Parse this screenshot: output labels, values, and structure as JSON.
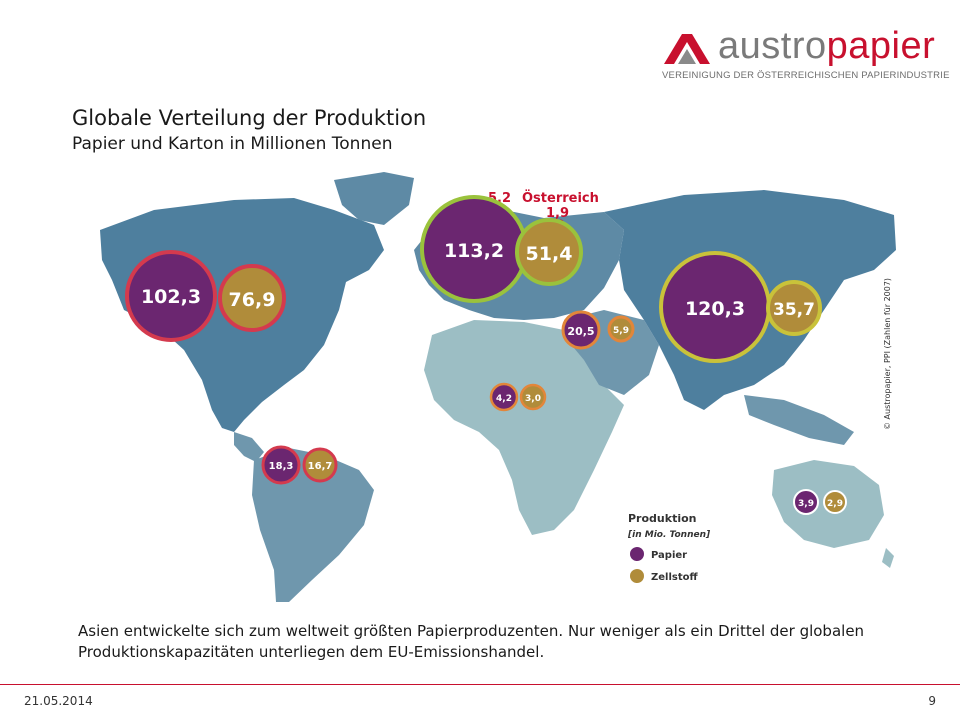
{
  "logo": {
    "word_a": "austro",
    "word_b": "papier",
    "subtitle": "VEREINIGUNG DER ÖSTERREICHISCHEN PAPIERINDUSTRIE"
  },
  "slide": {
    "title": "Globale Verteilung der Produktion",
    "subtitle": "Papier und Karton in Millionen Tonnen",
    "caption": "Asien entwickelte sich zum weltweit größten Papierproduzenten. Nur weniger als ein Drittel der globalen Produktionskapazitäten unterliegen dem EU-Emissionshandel.",
    "date": "21.05.2014",
    "page": "9"
  },
  "map": {
    "copyright": "© Austropapier, PPI (Zahlen für 2007)",
    "austria": {
      "label": "Österreich",
      "papier": "5,2",
      "zellstoff": "1,9"
    },
    "regions": {
      "north_america": {
        "papier": "102,3",
        "zellstoff": "76,9"
      },
      "europe": {
        "papier": "113,2",
        "zellstoff": "51,4"
      },
      "asia": {
        "papier": "120,3",
        "zellstoff": "35,7"
      },
      "middle_east": {
        "papier": "20,5",
        "zellstoff": "5,9"
      },
      "africa": {
        "papier": "4,2",
        "zellstoff": "3,0"
      },
      "south_america": {
        "papier": "18,3",
        "zellstoff": "16,7"
      },
      "oceania": {
        "papier": "3,9",
        "zellstoff": "2,9"
      }
    },
    "legend": {
      "title": "Produktion",
      "unit": "[in Mio. Tonnen]",
      "papier": "Papier",
      "zellstoff": "Zellstoff"
    },
    "colors": {
      "papier": "#6b2670",
      "zellstoff": "#b08c3a",
      "ring_red": "#d43a4e",
      "ring_green": "#9ac23c",
      "ocean": "#ffffff",
      "land_dark": "#4e7f9e",
      "land_mid": "#6f97ad",
      "land_light": "#9cbec4",
      "accent": "#c8102e"
    }
  }
}
